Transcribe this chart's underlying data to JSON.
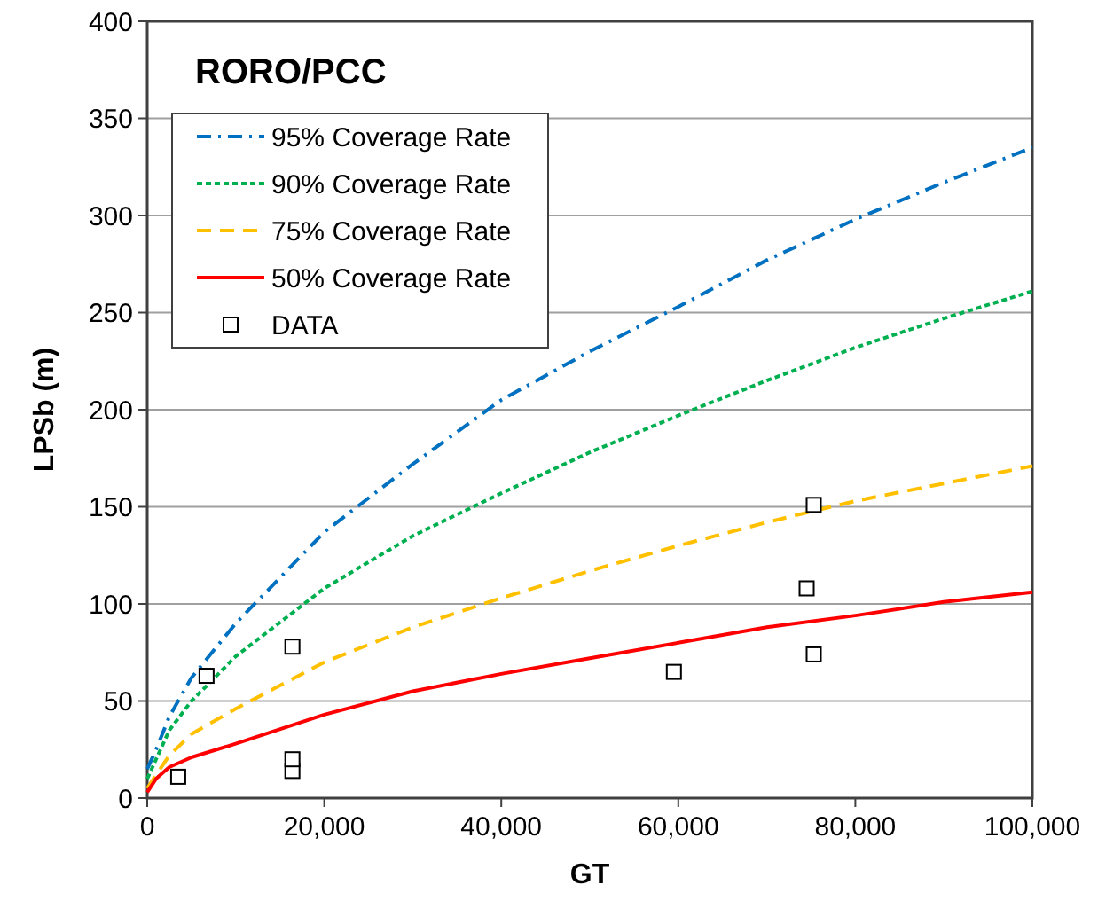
{
  "chart_data": {
    "type": "line",
    "title": "RORO/PCC",
    "xlabel": "GT",
    "ylabel": "LPSb (m)",
    "xlim": [
      0,
      100000
    ],
    "ylim": [
      0,
      400
    ],
    "xticks": [
      0,
      {
        "value": 20000,
        "label": "20,000"
      },
      {
        "value": 40000,
        "label": "40,000"
      },
      {
        "value": 60000,
        "label": "60,000"
      },
      {
        "value": 80000,
        "label": "80,000"
      },
      {
        "value": 100000,
        "label": "100,000"
      }
    ],
    "yticks": [
      0,
      50,
      100,
      150,
      200,
      250,
      300,
      350,
      400
    ],
    "grid": "y",
    "legend": "top left",
    "series": [
      {
        "name": "95% Coverage Rate",
        "color": "#0070c0",
        "line_style": "dashdot",
        "marker": "none",
        "x": [
          0,
          1000,
          2500,
          5000,
          10000,
          20000,
          30000,
          40000,
          50000,
          60000,
          70000,
          80000,
          90000,
          100000
        ],
        "values": [
          15,
          25,
          42,
          62,
          90,
          137,
          172,
          205,
          230,
          253,
          277,
          298,
          317,
          335
        ]
      },
      {
        "name": "90% Coverage Rate",
        "color": "#00b050",
        "line_style": "dotted",
        "marker": "none",
        "x": [
          0,
          1000,
          2500,
          5000,
          10000,
          20000,
          30000,
          40000,
          50000,
          60000,
          70000,
          80000,
          90000,
          100000
        ],
        "values": [
          10,
          20,
          35,
          50,
          73,
          108,
          135,
          157,
          178,
          197,
          215,
          232,
          247,
          261
        ]
      },
      {
        "name": "75% Coverage Rate",
        "color": "#ffc000",
        "line_style": "dashed",
        "marker": "none",
        "x": [
          0,
          1000,
          2500,
          5000,
          10000,
          20000,
          30000,
          40000,
          50000,
          60000,
          70000,
          80000,
          90000,
          100000
        ],
        "values": [
          5,
          12,
          22,
          33,
          46,
          70,
          88,
          103,
          117,
          130,
          142,
          153,
          162,
          171
        ]
      },
      {
        "name": "50% Coverage Rate",
        "color": "#ff0000",
        "line_style": "solid",
        "marker": "none",
        "x": [
          0,
          1000,
          2500,
          5000,
          10000,
          20000,
          30000,
          40000,
          50000,
          60000,
          70000,
          80000,
          90000,
          100000
        ],
        "values": [
          3,
          10,
          16,
          21,
          28,
          43,
          55,
          64,
          72,
          80,
          88,
          94,
          101,
          106
        ]
      },
      {
        "name": "DATA",
        "type": "scatter",
        "color": "#000000",
        "marker": "square",
        "x": [
          3500,
          6700,
          16400,
          16400,
          16400,
          59500,
          74500,
          75300,
          75300
        ],
        "values": [
          11,
          63,
          78,
          14,
          20,
          65,
          108,
          151,
          74
        ]
      }
    ]
  }
}
